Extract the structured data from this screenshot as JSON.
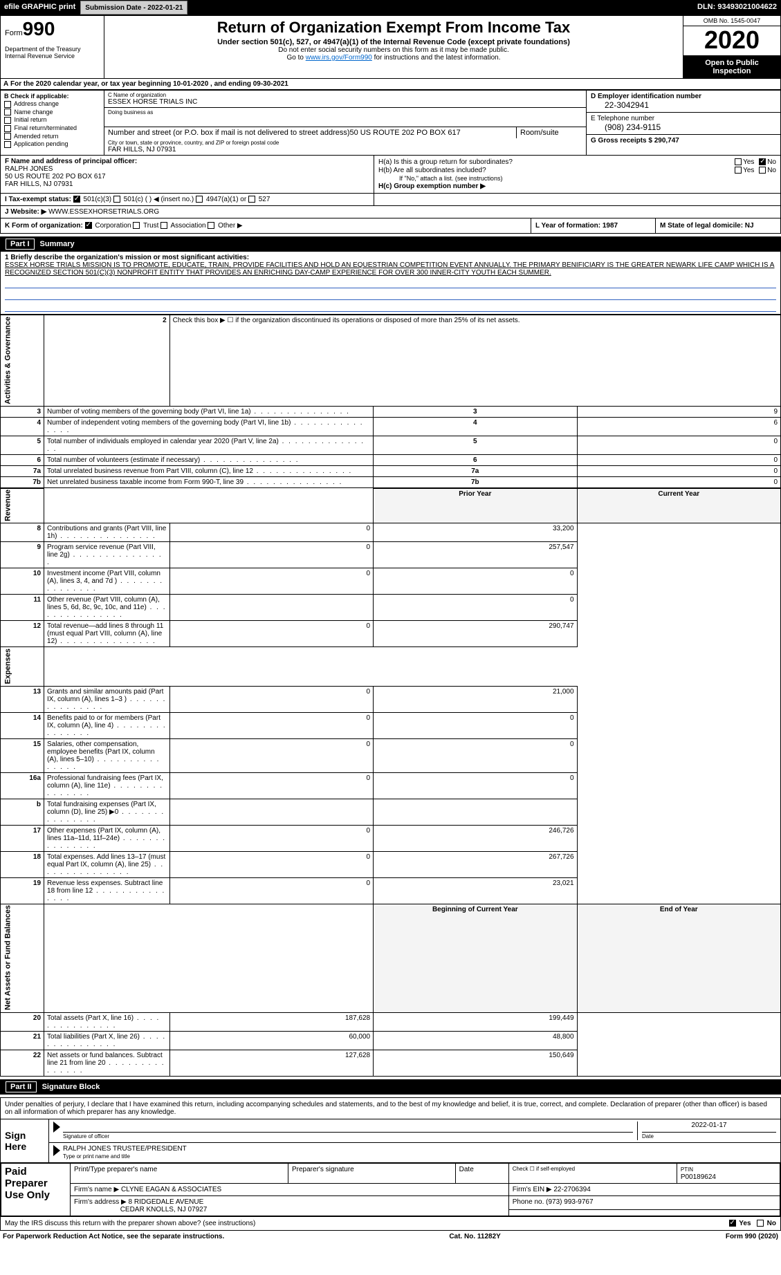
{
  "toolbar": {
    "efile": "efile GRAPHIC print",
    "submission": "Submission Date - 2022-01-21",
    "dln": "DLN: 93493021004622"
  },
  "header": {
    "form": "Form",
    "formno": "990",
    "dept": "Department of the Treasury\nInternal Revenue Service",
    "title": "Return of Organization Exempt From Income Tax",
    "subtitle": "Under section 501(c), 527, or 4947(a)(1) of the Internal Revenue Code (except private foundations)",
    "nossn": "Do not enter social security numbers on this form as it may be made public.",
    "goto": "Go to ",
    "gotolink": "www.irs.gov/Form990",
    "gotorest": " for instructions and the latest information.",
    "omb": "OMB No. 1545-0047",
    "year": "2020",
    "inspect": "Open to Public Inspection"
  },
  "taxyear": {
    "a": "A",
    "text": "For the 2020 calendar year, or tax year beginning 10-01-2020    , and ending 09-30-2021"
  },
  "checkB": {
    "label": "B Check if applicable:",
    "items": [
      "Address change",
      "Name change",
      "Initial return",
      "Final return/terminated",
      "Amended return",
      "Application pending"
    ]
  },
  "org": {
    "clabel": "C Name of organization",
    "cname": "ESSEX HORSE TRIALS INC",
    "dba": "Doing business as",
    "street_lbl": "Number and street (or P.O. box if mail is not delivered to street address)",
    "street": "50 US ROUTE 202 PO BOX 617",
    "room_lbl": "Room/suite",
    "city_lbl": "City or town, state or province, country, and ZIP or foreign postal code",
    "city": "FAR HILLS, NJ  07931"
  },
  "id": {
    "d": "D Employer identification number",
    "ein": "22-3042941",
    "e": "E Telephone number",
    "phone": "(908) 234-9115",
    "g": "G Gross receipts $ 290,747"
  },
  "officer": {
    "f": "F  Name and address of principal officer:",
    "name": "RALPH JONES",
    "addr1": "50 US ROUTE 202 PO BOX 617",
    "addr2": "FAR HILLS, NJ  07931",
    "ha": "H(a)  Is this a group return for subordinates?",
    "hb": "H(b)  Are all subordinates included?",
    "hbnote": "If \"No,\" attach a list. (see instructions)",
    "hc": "H(c)  Group exemption number ▶",
    "yes": "Yes",
    "no": "No"
  },
  "i": {
    "label": "I   Tax-exempt status:",
    "o1": "501(c)(3)",
    "o2": "501(c) (  ) ◀ (insert no.)",
    "o3": "4947(a)(1) or",
    "o4": "527"
  },
  "j": {
    "label": "J   Website: ▶",
    "val": "WWW.ESSEXHORSETRIALS.ORG"
  },
  "k": {
    "label": "K Form of organization:",
    "corp": "Corporation",
    "trust": "Trust",
    "assoc": "Association",
    "other": "Other ▶"
  },
  "l": {
    "label": "L Year of formation: 1987"
  },
  "m": {
    "label": "M State of legal domicile: NJ"
  },
  "part1": {
    "no": "Part I",
    "title": "Summary"
  },
  "summary": {
    "line1": "1  Briefly describe the organization's mission or most significant activities:",
    "mission": "ESSEX HORSE TRIALS MISSION IS TO PROMOTE, EDUCATE, TRAIN, PROVIDE FACILITIES AND HOLD AN EQUESTRIAN COMPETITION EVENT ANNUALLY. THE PRIMARY BENIFICIARY IS THE GREATER NEWARK LIFE CAMP WHICH IS A RECOGNIZED SECTION 501(C)(3) NONPROFIT ENTITY THAT PROVIDES AN ENRICHING DAY-CAMP EXPERIENCE FOR OVER 300 INNER-CITY YOUTH EACH SUMMER.",
    "line2": "Check this box ▶ ☐ if the organization discontinued its operations or disposed of more than 25% of its net assets.",
    "sidebars": {
      "ag": "Activities & Governance",
      "rev": "Revenue",
      "exp": "Expenses",
      "na": "Net Assets or Fund Balances"
    },
    "colhead": {
      "prior": "Prior Year",
      "curr": "Current Year",
      "boc": "Beginning of Current Year",
      "eoy": "End of Year"
    },
    "rows_ag": [
      {
        "n": "3",
        "d": "Number of voting members of the governing body (Part VI, line 1a)",
        "v": "9"
      },
      {
        "n": "4",
        "d": "Number of independent voting members of the governing body (Part VI, line 1b)",
        "v": "6"
      },
      {
        "n": "5",
        "d": "Total number of individuals employed in calendar year 2020 (Part V, line 2a)",
        "v": "0"
      },
      {
        "n": "6",
        "d": "Total number of volunteers (estimate if necessary)",
        "v": "0"
      },
      {
        "n": "7a",
        "d": "Total unrelated business revenue from Part VIII, column (C), line 12",
        "v": "0"
      },
      {
        "n": "7b",
        "d": "Net unrelated business taxable income from Form 990-T, line 39",
        "v": "0"
      }
    ],
    "rows_rev": [
      {
        "n": "8",
        "d": "Contributions and grants (Part VIII, line 1h)",
        "p": "0",
        "c": "33,200"
      },
      {
        "n": "9",
        "d": "Program service revenue (Part VIII, line 2g)",
        "p": "0",
        "c": "257,547"
      },
      {
        "n": "10",
        "d": "Investment income (Part VIII, column (A), lines 3, 4, and 7d )",
        "p": "0",
        "c": "0"
      },
      {
        "n": "11",
        "d": "Other revenue (Part VIII, column (A), lines 5, 6d, 8c, 9c, 10c, and 11e)",
        "p": "",
        "c": "0"
      },
      {
        "n": "12",
        "d": "Total revenue—add lines 8 through 11 (must equal Part VIII, column (A), line 12)",
        "p": "0",
        "c": "290,747"
      }
    ],
    "rows_exp": [
      {
        "n": "13",
        "d": "Grants and similar amounts paid (Part IX, column (A), lines 1–3 )",
        "p": "0",
        "c": "21,000"
      },
      {
        "n": "14",
        "d": "Benefits paid to or for members (Part IX, column (A), line 4)",
        "p": "0",
        "c": "0"
      },
      {
        "n": "15",
        "d": "Salaries, other compensation, employee benefits (Part IX, column (A), lines 5–10)",
        "p": "0",
        "c": "0"
      },
      {
        "n": "16a",
        "d": "Professional fundraising fees (Part IX, column (A), line 11e)",
        "p": "0",
        "c": "0"
      },
      {
        "n": "b",
        "d": "Total fundraising expenses (Part IX, column (D), line 25) ▶0",
        "p": "",
        "c": "",
        "shade": true
      },
      {
        "n": "17",
        "d": "Other expenses (Part IX, column (A), lines 11a–11d, 11f–24e)",
        "p": "0",
        "c": "246,726"
      },
      {
        "n": "18",
        "d": "Total expenses. Add lines 13–17 (must equal Part IX, column (A), line 25)",
        "p": "0",
        "c": "267,726"
      },
      {
        "n": "19",
        "d": "Revenue less expenses. Subtract line 18 from line 12",
        "p": "0",
        "c": "23,021"
      }
    ],
    "rows_na": [
      {
        "n": "20",
        "d": "Total assets (Part X, line 16)",
        "p": "187,628",
        "c": "199,449"
      },
      {
        "n": "21",
        "d": "Total liabilities (Part X, line 26)",
        "p": "60,000",
        "c": "48,800"
      },
      {
        "n": "22",
        "d": "Net assets or fund balances. Subtract line 21 from line 20",
        "p": "127,628",
        "c": "150,649"
      }
    ]
  },
  "part2": {
    "no": "Part II",
    "title": "Signature Block"
  },
  "sig": {
    "penalty": "Under penalties of perjury, I declare that I have examined this return, including accompanying schedules and statements, and to the best of my knowledge and belief, it is true, correct, and complete. Declaration of preparer (other than officer) is based on all information of which preparer has any knowledge.",
    "signhere": "Sign Here",
    "sigoff": "Signature of officer",
    "date": "2022-01-17",
    "datelbl": "Date",
    "name": "RALPH JONES TRUSTEE/PRESIDENT",
    "namelbl": "Type or print name and title"
  },
  "prep": {
    "label": "Paid Preparer Use Only",
    "h1": "Print/Type preparer's name",
    "h2": "Preparer's signature",
    "h3": "Date",
    "h4": "Check ☐ if self-employed",
    "h5": "PTIN",
    "ptin": "P00189624",
    "firm_lbl": "Firm's name    ▶",
    "firm": "CLYNE EAGAN & ASSOCIATES",
    "ein_lbl": "Firm's EIN ▶",
    "ein": "22-2706394",
    "addr_lbl": "Firm's address ▶",
    "addr1": "8 RIDGEDALE AVENUE",
    "addr2": "CEDAR KNOLLS, NJ  07927",
    "phone_lbl": "Phone no.",
    "phone": "(973) 993-9767",
    "discuss": "May the IRS discuss this return with the preparer shown above? (see instructions)",
    "yes": "Yes",
    "no": "No"
  },
  "footer": {
    "pra": "For Paperwork Reduction Act Notice, see the separate instructions.",
    "cat": "Cat. No. 11282Y",
    "form": "Form 990 (2020)"
  }
}
